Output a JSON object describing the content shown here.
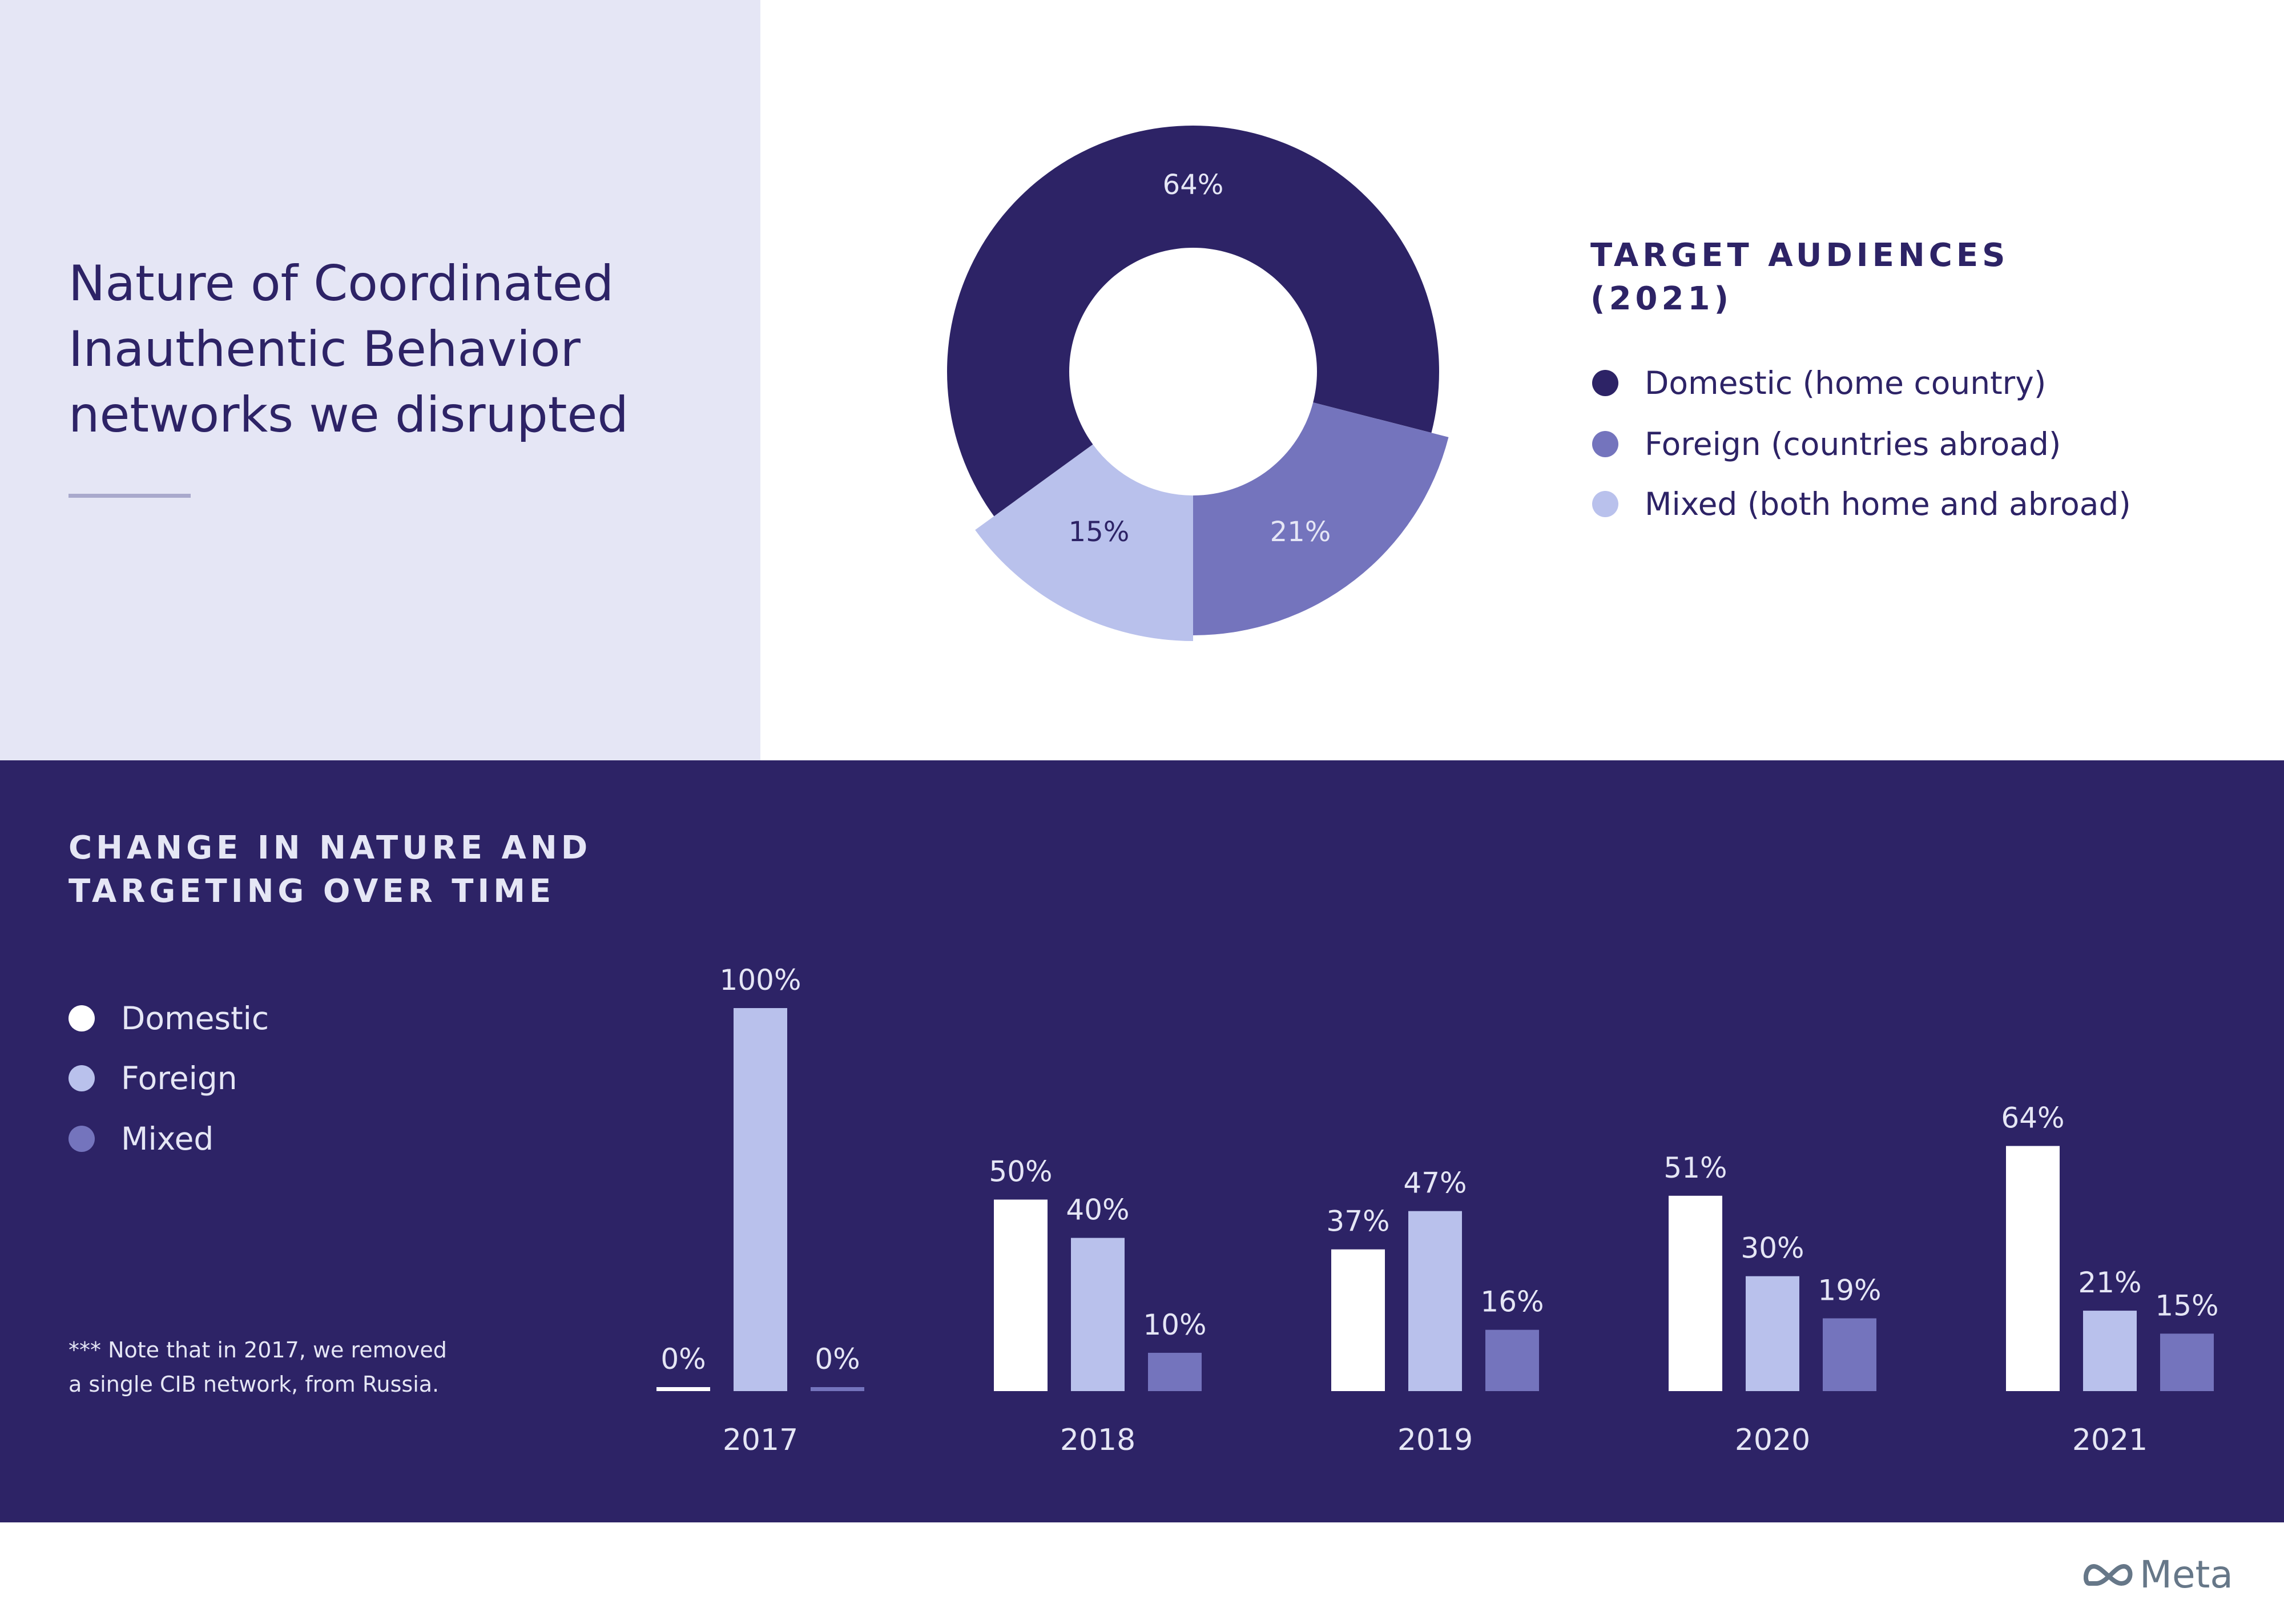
{
  "title": [
    "Nature of Coordinated",
    "Inauthentic Behavior",
    "networks we disrupted"
  ],
  "colors": {
    "domestic_dark": "#2d2366",
    "foreign_mid": "#7474bd",
    "mixed_light": "#b9c1ec",
    "white": "#ffffff",
    "background_light": "#e5e6f5",
    "band": "#2d2366"
  },
  "donut_legend": {
    "title": [
      "TARGET AUDIENCES",
      "(2021)"
    ],
    "items": [
      {
        "label": "Domestic (home country)",
        "color": "#2d2366"
      },
      {
        "label": "Foreign (countries abroad)",
        "color": "#7474bd"
      },
      {
        "label": "Mixed (both home and abroad)",
        "color": "#b9c1ec"
      }
    ]
  },
  "bar_section": {
    "title": [
      "CHANGE IN NATURE AND",
      "TARGETING OVER TIME"
    ],
    "legend": [
      {
        "label": "Domestic",
        "color": "#ffffff"
      },
      {
        "label": "Foreign",
        "color": "#b9c1ec"
      },
      {
        "label": "Mixed",
        "color": "#7474bd"
      }
    ],
    "note": [
      "*** Note that in 2017, we removed",
      "a single CIB network, from Russia."
    ]
  },
  "logo": "Meta",
  "chart_data": [
    {
      "type": "pie",
      "donut": true,
      "title": "TARGET AUDIENCES (2021)",
      "slices": [
        {
          "name": "Domestic (home country)",
          "value": 64,
          "label": "64%",
          "color": "#2d2366"
        },
        {
          "name": "Foreign (countries abroad)",
          "value": 21,
          "label": "21%",
          "color": "#7474bd"
        },
        {
          "name": "Mixed (both home and abroad)",
          "value": 15,
          "label": "15%",
          "color": "#b9c1ec"
        }
      ],
      "legend": "right"
    },
    {
      "type": "bar",
      "title": "CHANGE IN NATURE AND TARGETING OVER TIME",
      "categories": [
        "2017",
        "2018",
        "2019",
        "2020",
        "2021"
      ],
      "series": [
        {
          "name": "Domestic",
          "color": "#ffffff",
          "values": [
            0,
            50,
            37,
            51,
            64
          ]
        },
        {
          "name": "Foreign",
          "color": "#b9c1ec",
          "values": [
            100,
            40,
            47,
            30,
            21
          ]
        },
        {
          "name": "Mixed",
          "color": "#7474bd",
          "values": [
            0,
            10,
            16,
            19,
            15
          ]
        }
      ],
      "ylim": [
        0,
        100
      ],
      "grid": false,
      "legend": "left"
    }
  ]
}
